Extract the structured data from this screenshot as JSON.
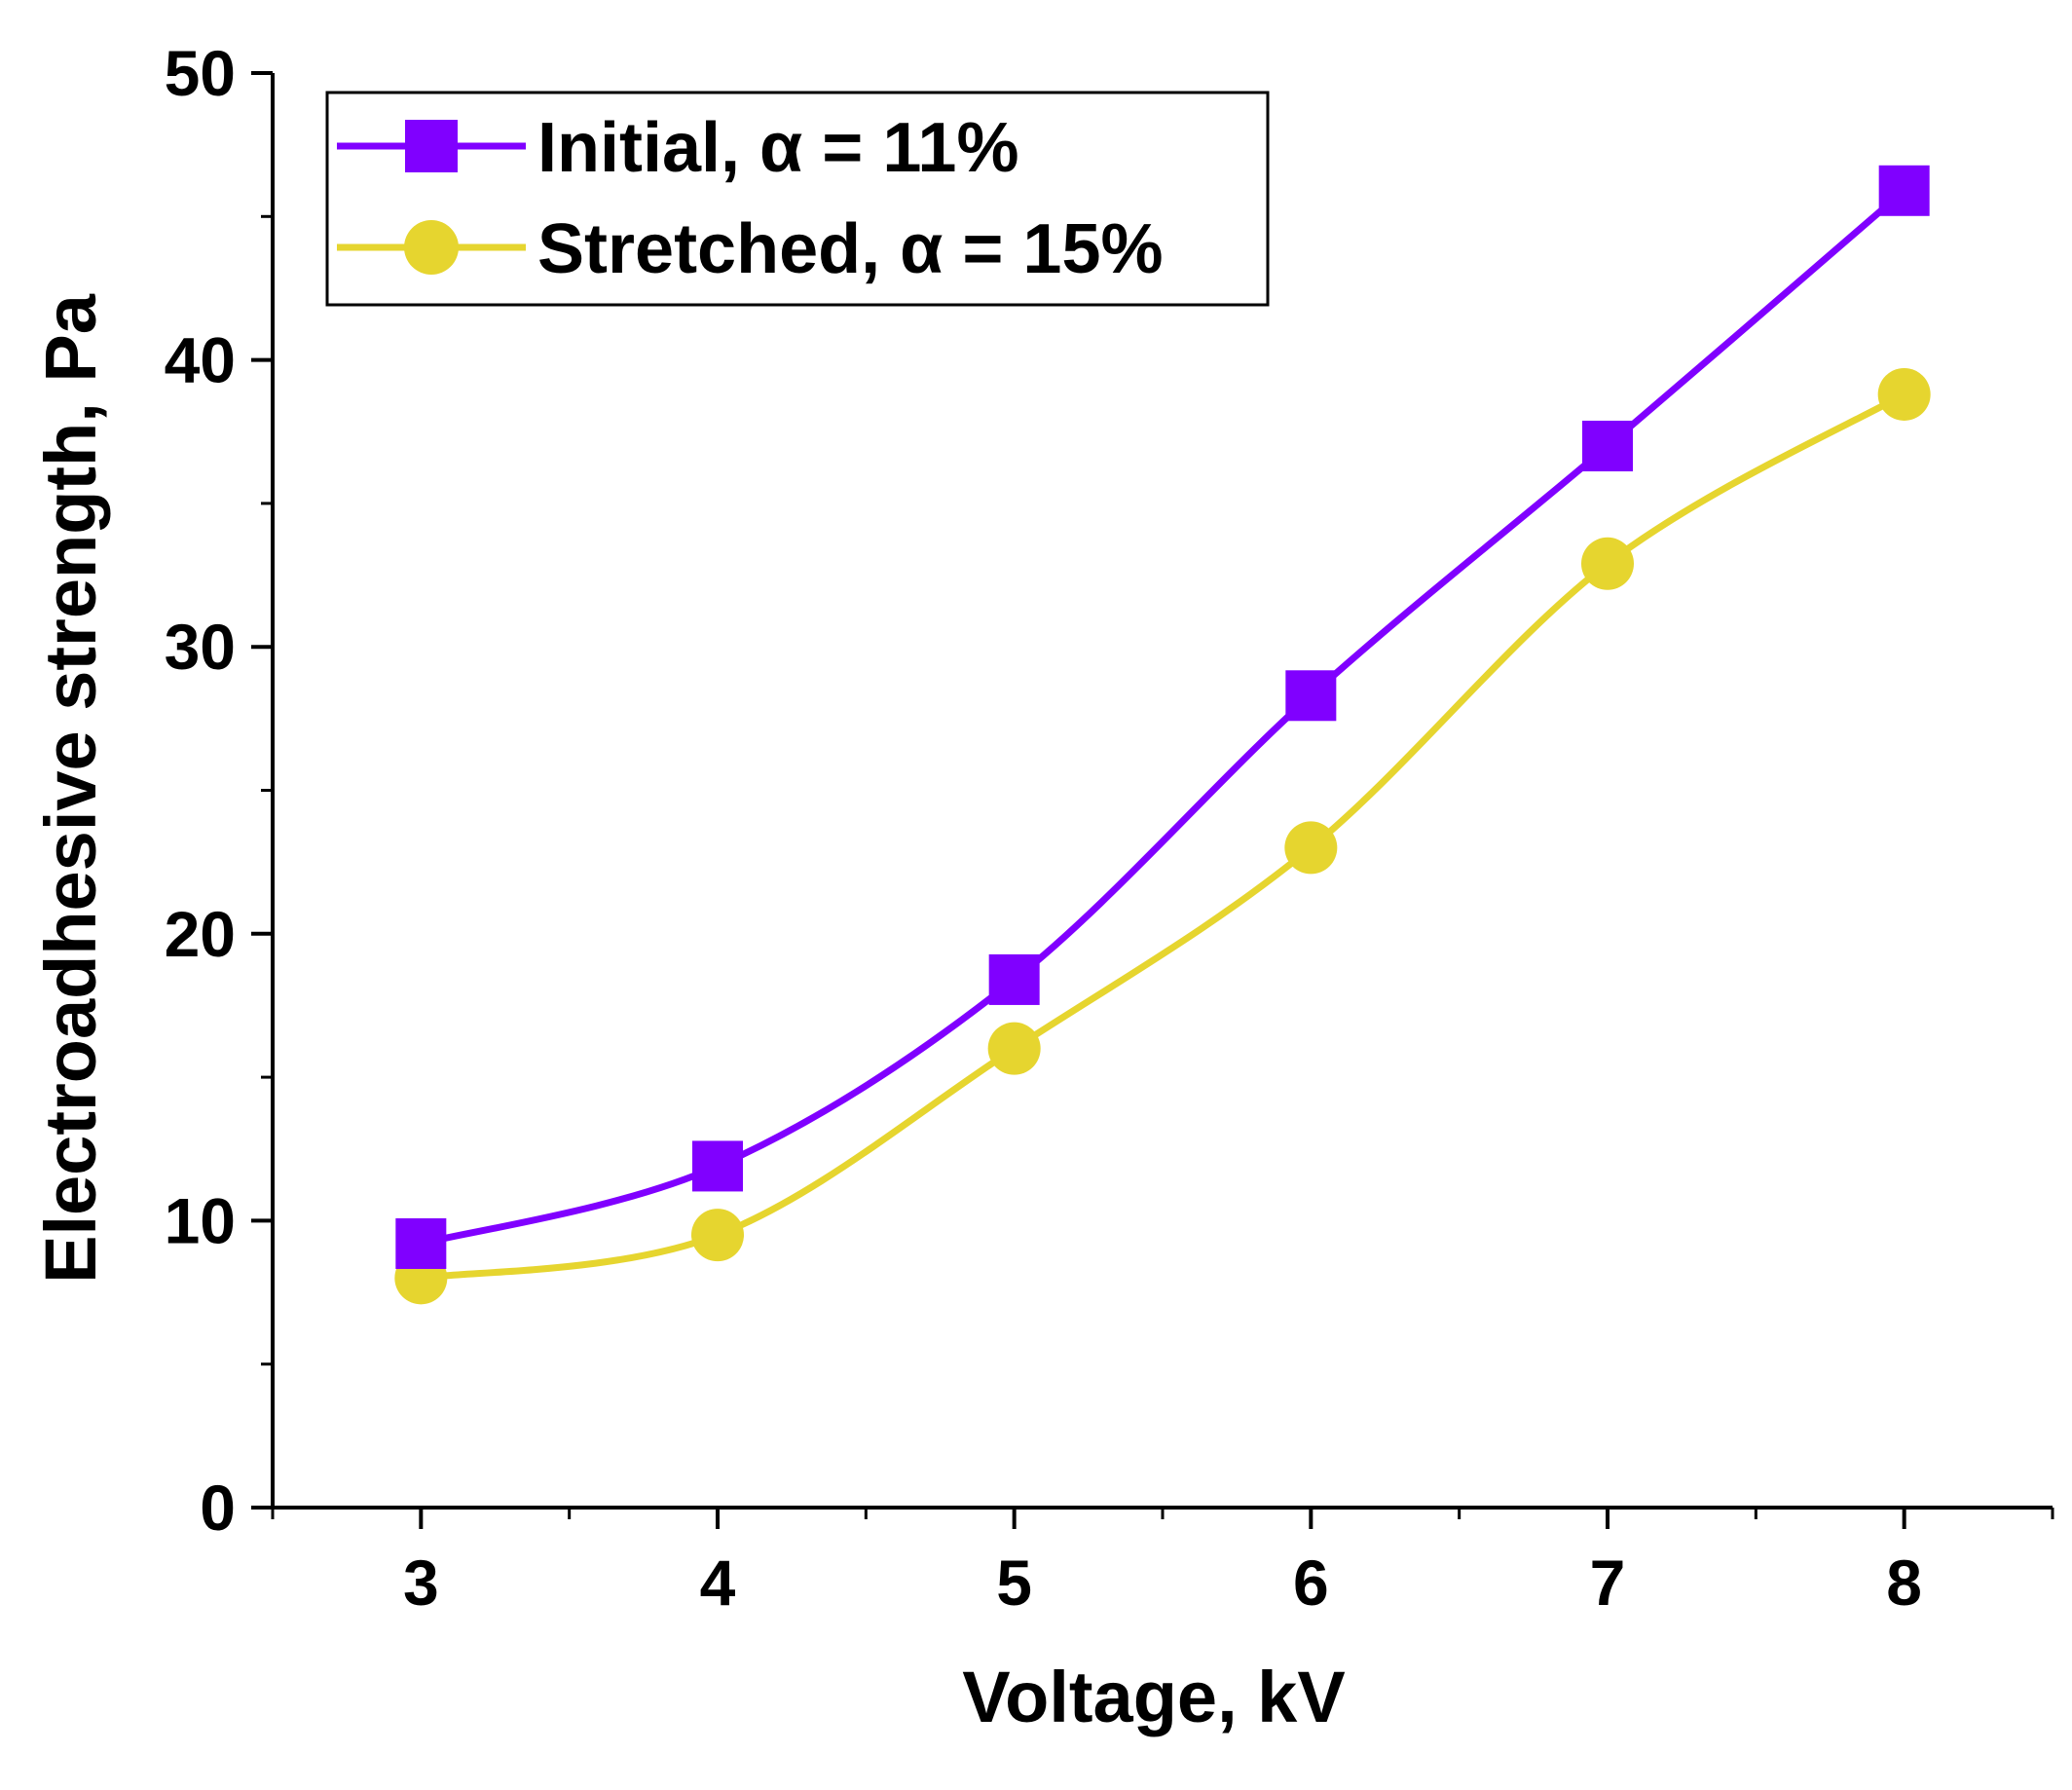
{
  "chart_data": {
    "type": "line",
    "title": "",
    "xlabel": "Voltage, kV",
    "ylabel": "Electroadhesive strength, Pa",
    "xlim": [
      2.5,
      8.5
    ],
    "ylim": [
      0,
      50
    ],
    "x": [
      3,
      4,
      5,
      6,
      7,
      8
    ],
    "x_ticks": [
      3,
      4,
      5,
      6,
      7,
      8
    ],
    "y_ticks": [
      0,
      10,
      20,
      30,
      40,
      50
    ],
    "grid": false,
    "legend_position": "top-left",
    "series": [
      {
        "name": "Initial, α = 11%",
        "marker": "square",
        "color": "#8000ff",
        "values": [
          9.2,
          11.9,
          18.4,
          28.3,
          37.0,
          45.9
        ]
      },
      {
        "name": "Stretched, α = 15%",
        "marker": "circle",
        "color": "#e6d52f",
        "values": [
          8.0,
          9.5,
          16.0,
          23.0,
          32.9,
          38.8
        ]
      }
    ]
  }
}
